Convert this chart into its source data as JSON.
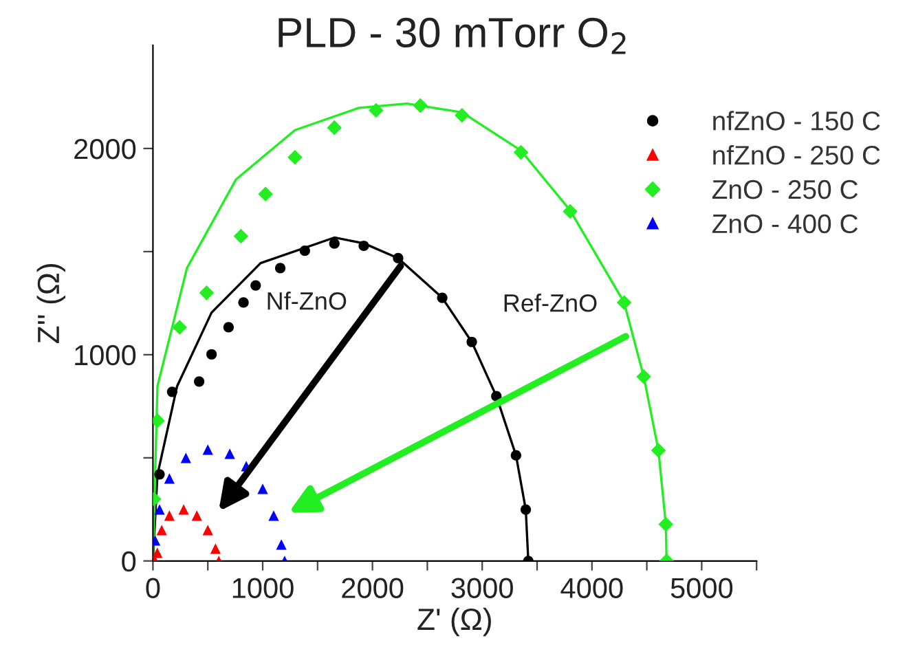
{
  "chart_data": {
    "type": "scatter",
    "title": "PLD - 30 mTorr O$_{2}$",
    "xlabel": "Z' (Ω)",
    "ylabel": "Z'' (Ω)",
    "xlim": [
      0,
      5500
    ],
    "ylim": [
      0,
      2500
    ],
    "xticks": [
      0,
      {
        "value": 500,
        "label": null
      },
      1000,
      {
        "value": 1500,
        "label": null
      },
      2000,
      {
        "value": 2500,
        "label": null
      },
      3000,
      {
        "value": 3500,
        "label": null
      },
      4000,
      {
        "value": 4500,
        "label": null
      },
      5000,
      {
        "value": 5500,
        "label": null
      }
    ],
    "yticks": [
      0,
      {
        "value": 500,
        "label": null
      },
      1000,
      {
        "value": 1500,
        "label": null
      },
      2000
    ],
    "grid": false,
    "legend": "top right",
    "annotations": [
      "Nf-ZnO",
      "Ref-ZnO"
    ],
    "series": [
      {
        "name": "nfZnO - 150 C",
        "color": "#000000",
        "marker": "circle",
        "x": [
          60,
          175,
          421,
          534,
          689,
          825,
          936,
          1160,
          1384,
          1653,
          1921,
          2234,
          2636,
          2905,
          3129,
          3308,
          3397,
          3420
        ],
        "values": [
          420,
          820,
          870,
          1002,
          1133,
          1253,
          1336,
          1420,
          1504,
          1539,
          1528,
          1468,
          1276,
          1062,
          799,
          512,
          249,
          0
        ]
      },
      {
        "name": "nfZnO - 250 C",
        "color": "#ff0000",
        "marker": "triangle",
        "x": [
          20,
          40,
          80,
          150,
          280,
          400,
          500,
          570,
          600
        ],
        "values": [
          0,
          40,
          150,
          220,
          250,
          220,
          150,
          60,
          0
        ]
      },
      {
        "name": "ZnO - 250 C",
        "color": "#22ee22",
        "marker": "diamond",
        "x": [
          10,
          41,
          243,
          489,
          802,
          1026,
          1294,
          1653,
          2033,
          2436,
          2816,
          3353,
          3801,
          4293,
          4472,
          4606,
          4673,
          4680
        ],
        "values": [
          300,
          680,
          1133,
          1300,
          1575,
          1779,
          1957,
          2101,
          2185,
          2208,
          2161,
          1981,
          1695,
          1253,
          894,
          536,
          178,
          0
        ]
      },
      {
        "name": "ZnO - 400 C",
        "color": "#0000ff",
        "marker": "triangle",
        "x": [
          20,
          60,
          150,
          300,
          500,
          700,
          850,
          1000,
          1100,
          1170,
          1200
        ],
        "values": [
          100,
          250,
          400,
          500,
          540,
          520,
          460,
          350,
          220,
          80,
          0
        ]
      },
      {
        "type": "line",
        "color": "#000000",
        "x": [
          0,
          41,
          220,
          534,
          981,
          1653,
          1921,
          2234,
          2636,
          2905,
          3129,
          3308,
          3397,
          3420
        ],
        "values": [
          0,
          417,
          847,
          1204,
          1444,
          1568,
          1540,
          1468,
          1276,
          1062,
          799,
          512,
          249,
          0
        ]
      },
      {
        "type": "line",
        "color": "#22ee22",
        "x": [
          0,
          41,
          310,
          757,
          1294,
          1876,
          2313,
          2816,
          3353,
          3801,
          4293,
          4472,
          4606,
          4673,
          4680
        ],
        "values": [
          0,
          847,
          1420,
          1850,
          2089,
          2197,
          2218,
          2175,
          1990,
          1700,
          1253,
          894,
          536,
          178,
          0
        ]
      }
    ]
  }
}
